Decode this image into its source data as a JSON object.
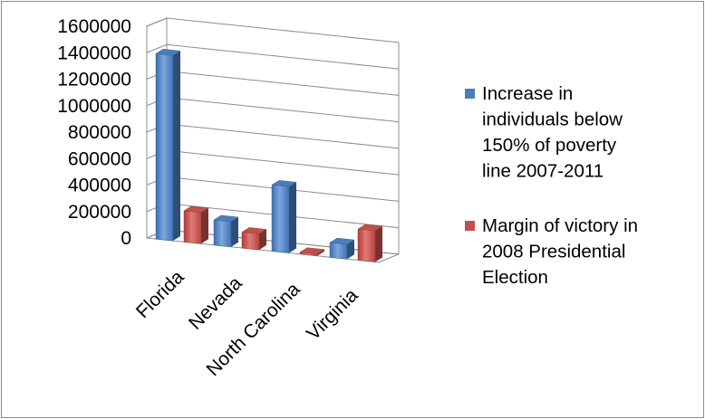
{
  "chart_data": {
    "type": "bar",
    "style": "3d-clustered-column",
    "categories": [
      "Florida",
      "Nevada",
      "North Carolina",
      "Virginia"
    ],
    "series": [
      {
        "name": "Increase in individuals below 150% of poverty line 2007-2011",
        "name_lines": [
          "Increase in",
          "individuals below",
          "150% of poverty",
          "line 2007-2011"
        ],
        "color": "#4a7ebb",
        "values": [
          1400000,
          190000,
          500000,
          110000
        ]
      },
      {
        "name": "Margin of victory in 2008 Presidential Election",
        "name_lines": [
          "Margin of victory in",
          "2008 Presidential",
          "Election"
        ],
        "color": "#c0504d",
        "values": [
          235000,
          120000,
          14000,
          235000
        ]
      }
    ],
    "y_ticks": [
      "1600000",
      "1400000",
      "1200000",
      "1000000",
      "800000",
      "600000",
      "400000",
      "200000",
      "0"
    ],
    "ylim": [
      0,
      1600000
    ],
    "grid": true,
    "legend_position": "right",
    "title": "",
    "xlabel": "",
    "ylabel": ""
  }
}
